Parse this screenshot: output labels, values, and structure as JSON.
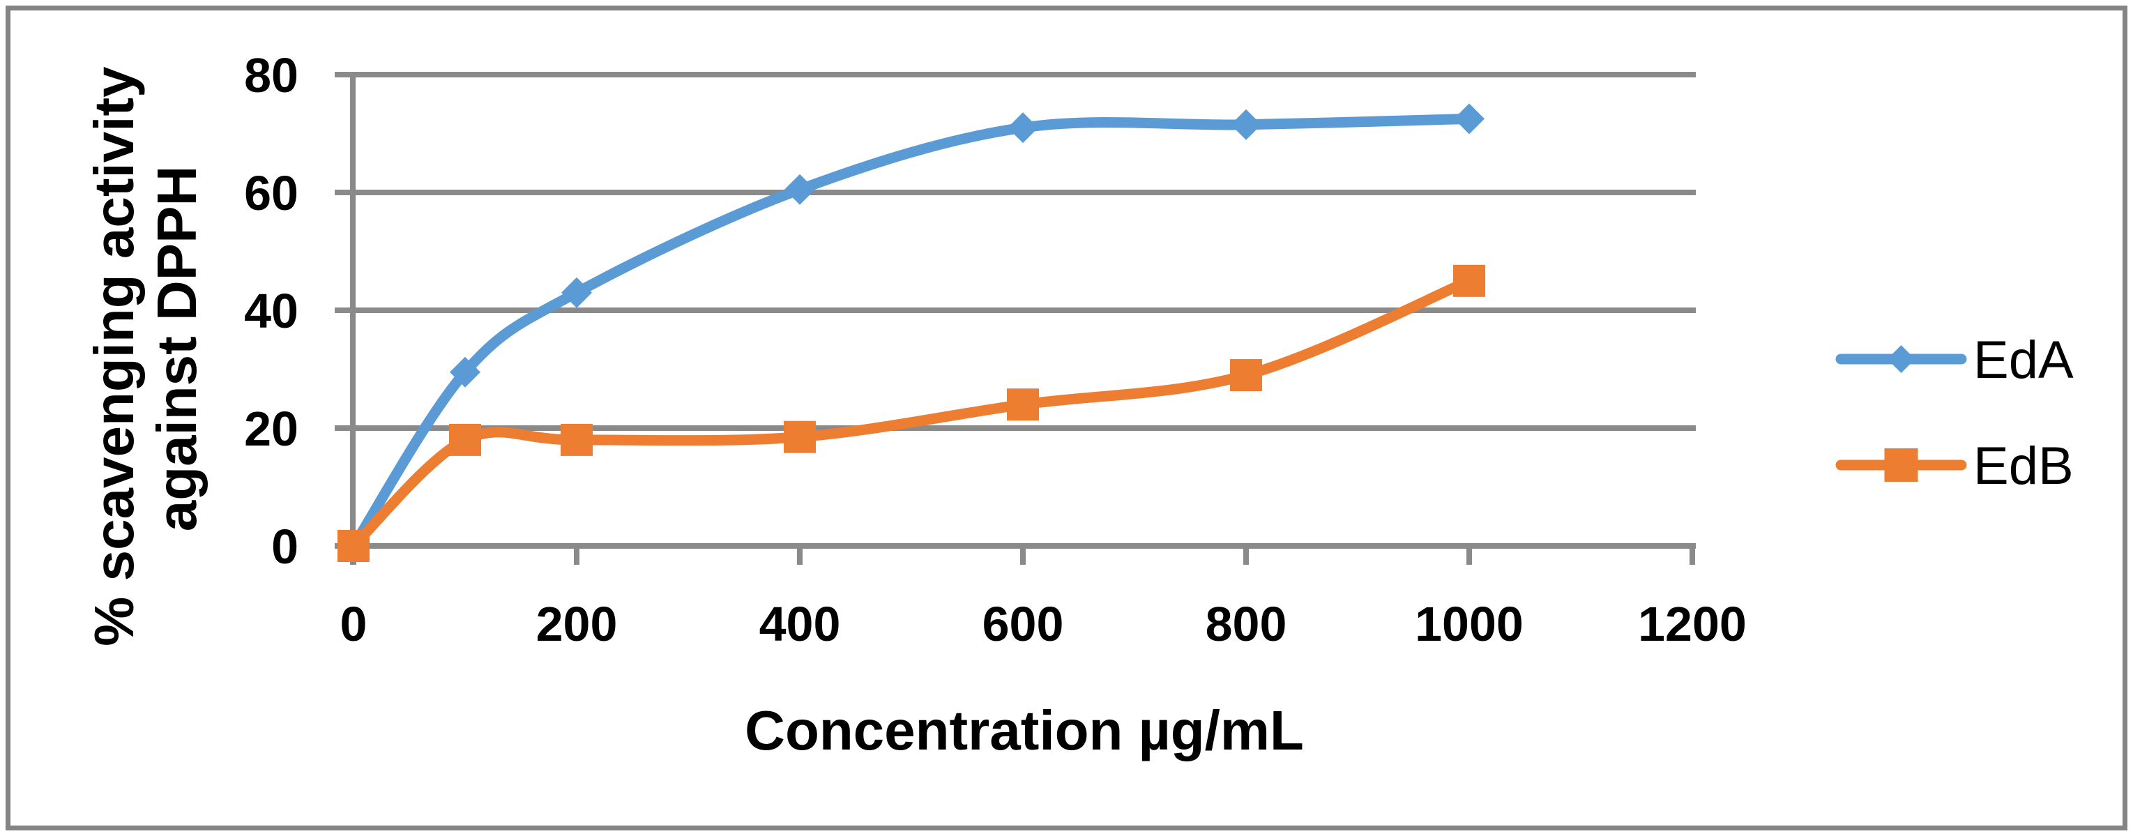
{
  "chart_data": {
    "type": "line",
    "title": "",
    "xlabel": "Concentration µg/mL",
    "ylabel_lines": [
      "% scavenging activity",
      "against DPPH"
    ],
    "x": [
      0,
      100,
      200,
      400,
      600,
      800,
      1000
    ],
    "x_tick_labels": [
      "0",
      "200",
      "400",
      "600",
      "800",
      "1000",
      "1200"
    ],
    "x_tick_values": [
      0,
      200,
      400,
      600,
      800,
      1000,
      1200
    ],
    "y_tick_labels": [
      "0",
      "20",
      "40",
      "60",
      "80"
    ],
    "y_tick_values": [
      0,
      20,
      40,
      60,
      80
    ],
    "xlim": [
      0,
      1200
    ],
    "ylim": [
      0,
      80
    ],
    "grid": true,
    "smooth_lines": true,
    "legend_position": "right",
    "series": [
      {
        "name": "EdA",
        "color": "#5B9BD5",
        "marker": "diamond",
        "values": [
          0,
          29.5,
          43,
          60.5,
          71,
          71.5,
          72.5
        ]
      },
      {
        "name": "EdB",
        "color": "#ED7D31",
        "marker": "square",
        "values": [
          0,
          18,
          18,
          18.5,
          24,
          29,
          45
        ]
      }
    ],
    "colors": {
      "gridline": "#8A8A8A",
      "axis": "#8A8A8A",
      "border": "#848484",
      "text": "#000000",
      "background": "#FFFFFF"
    }
  }
}
